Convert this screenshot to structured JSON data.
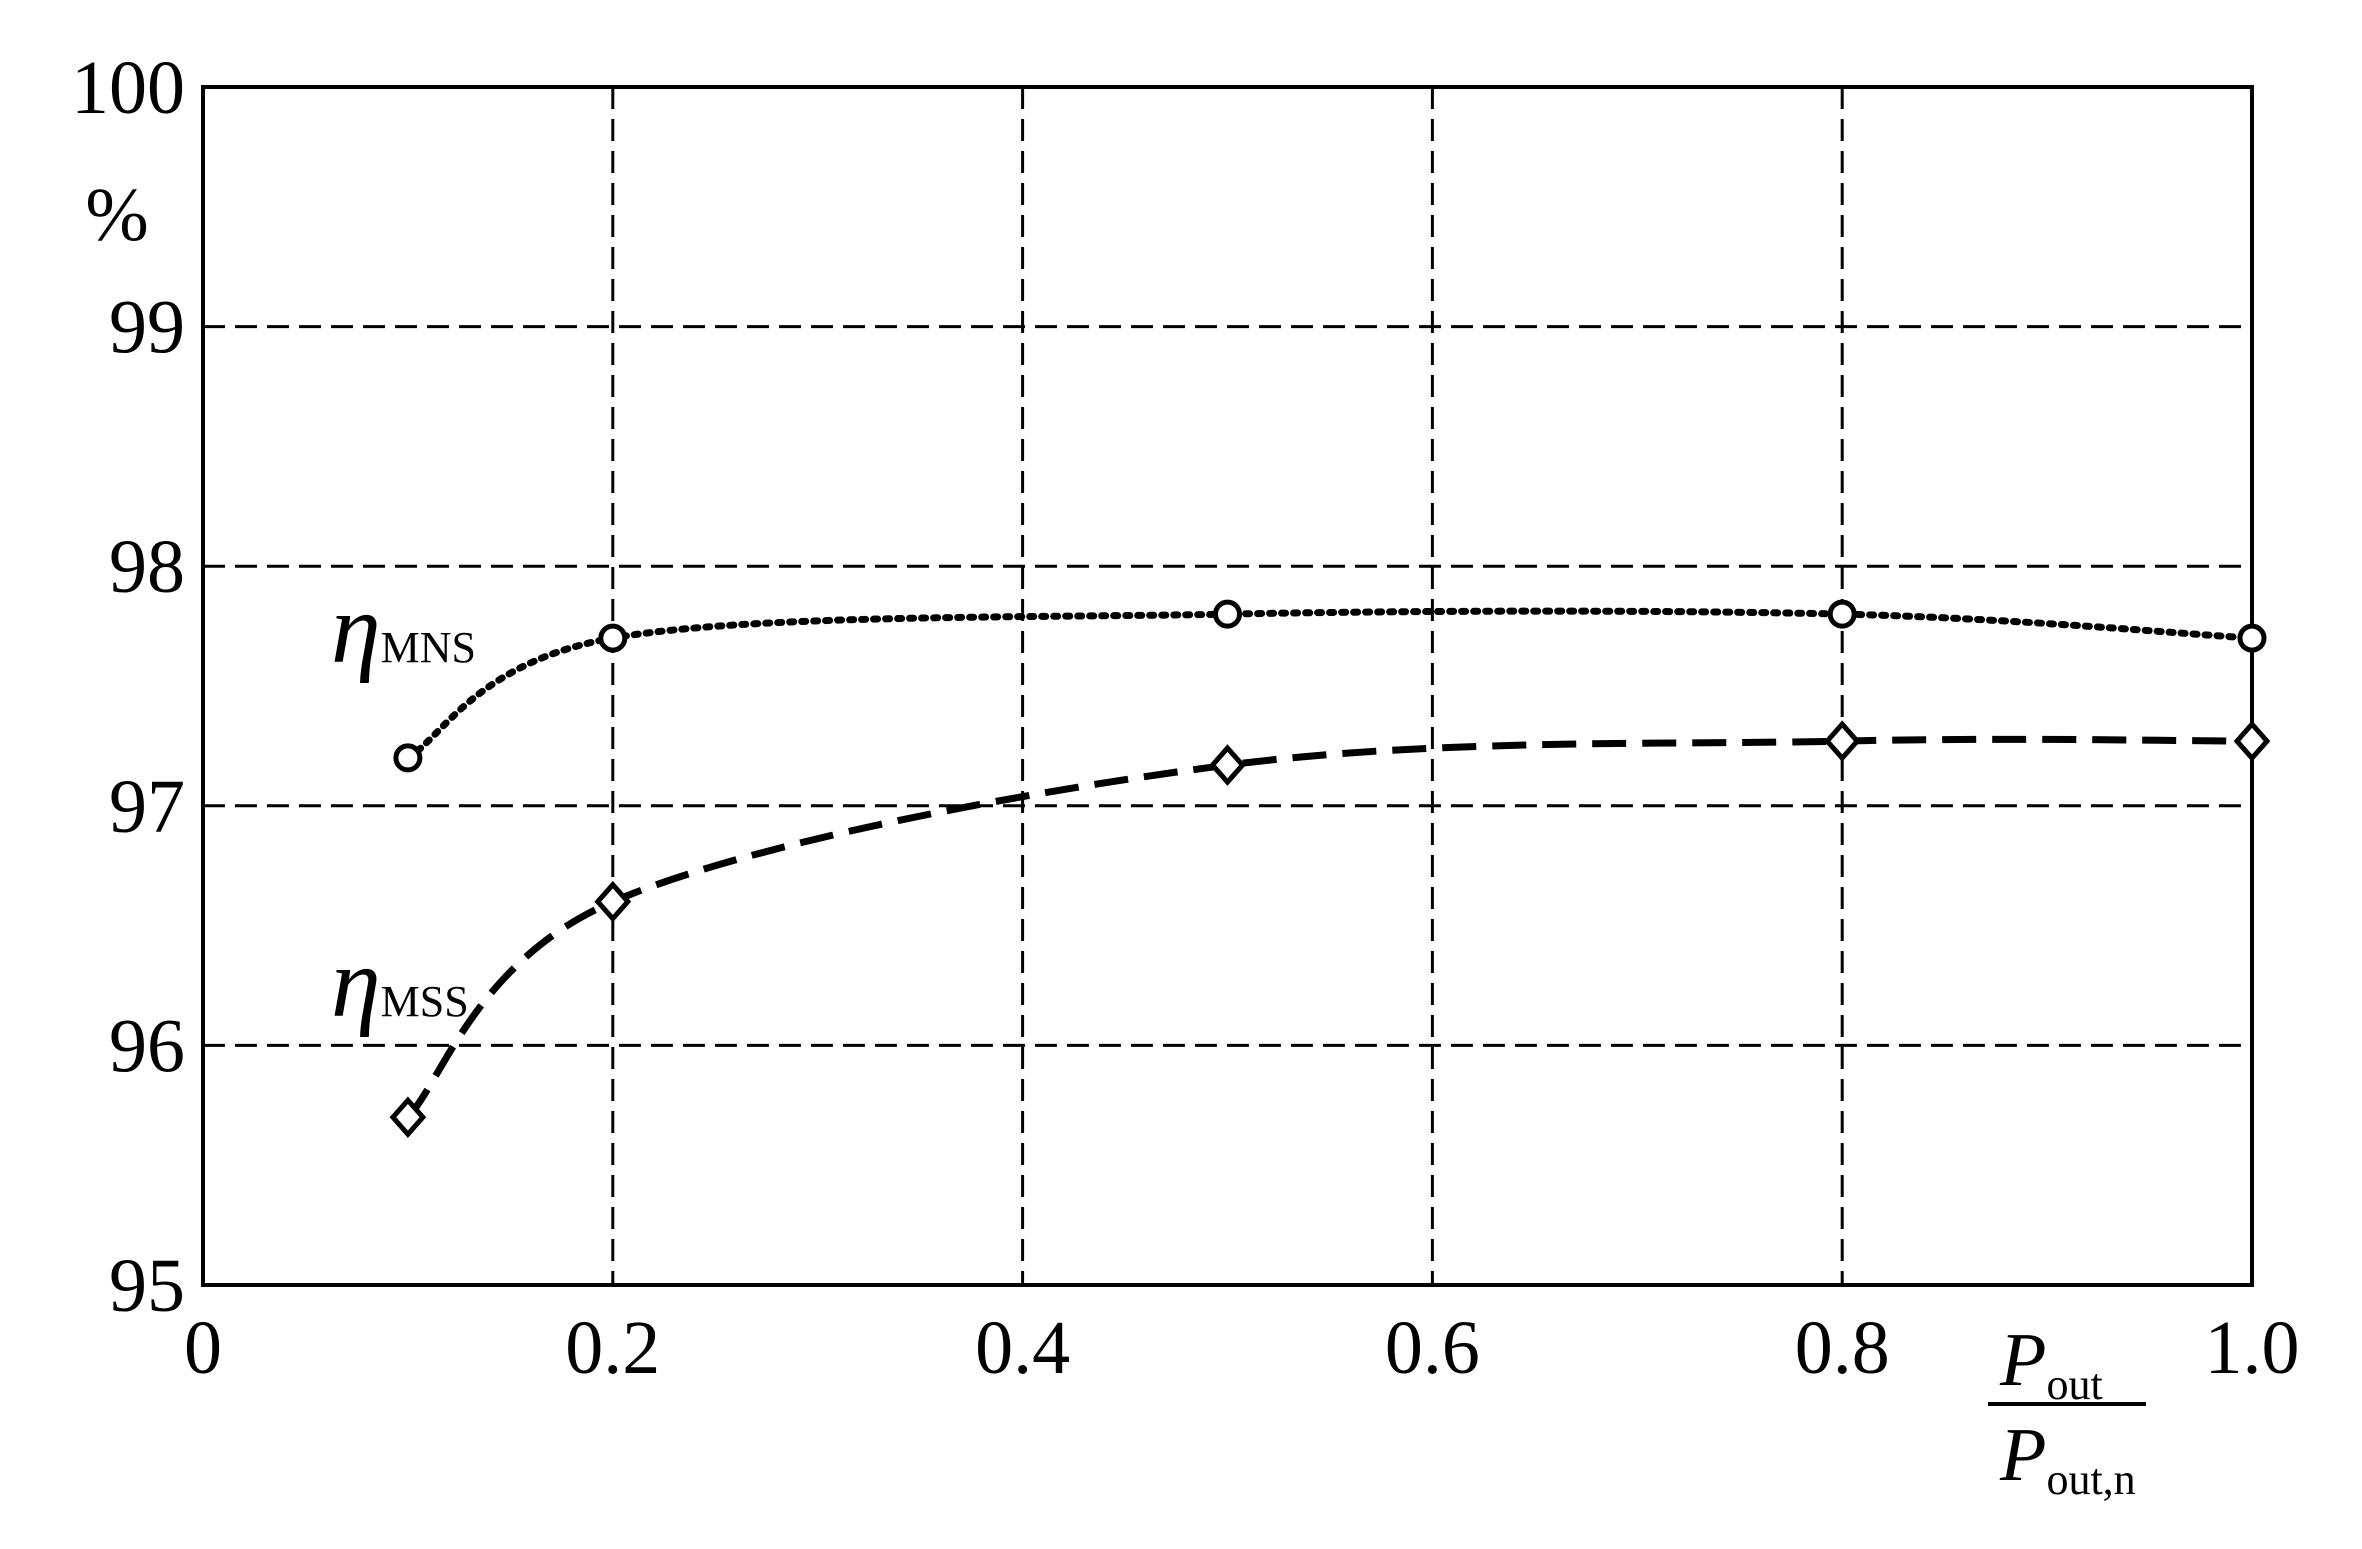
{
  "chart_data": {
    "type": "line",
    "y_label": "%",
    "x_label": {
      "numerator": {
        "symbol": "P",
        "sub": "out"
      },
      "denominator": {
        "symbol": "P",
        "sub": "out,n"
      }
    },
    "xlim": [
      0,
      1
    ],
    "ylim": [
      95,
      100
    ],
    "xticks": [
      0,
      0.2,
      0.4,
      0.6,
      0.8,
      {
        "value": 1,
        "label": "1.0"
      }
    ],
    "yticks": [
      95,
      96,
      97,
      98,
      99,
      100
    ],
    "grid": true,
    "series": [
      {
        "name": "η",
        "sub": "MNS",
        "color": "#000000",
        "dash": "dotted",
        "marker": "circle",
        "x": [
          0.1,
          0.2,
          0.5,
          0.8,
          1.0
        ],
        "values": [
          97.2,
          97.7,
          97.8,
          97.8,
          97.7
        ]
      },
      {
        "name": "η",
        "sub": "MSS",
        "color": "#000000",
        "dash": "dashed",
        "marker": "diamond",
        "x": [
          0.1,
          0.2,
          0.5,
          0.8,
          1.0
        ],
        "values": [
          95.7,
          96.6,
          97.17,
          97.27,
          97.27
        ]
      }
    ]
  }
}
